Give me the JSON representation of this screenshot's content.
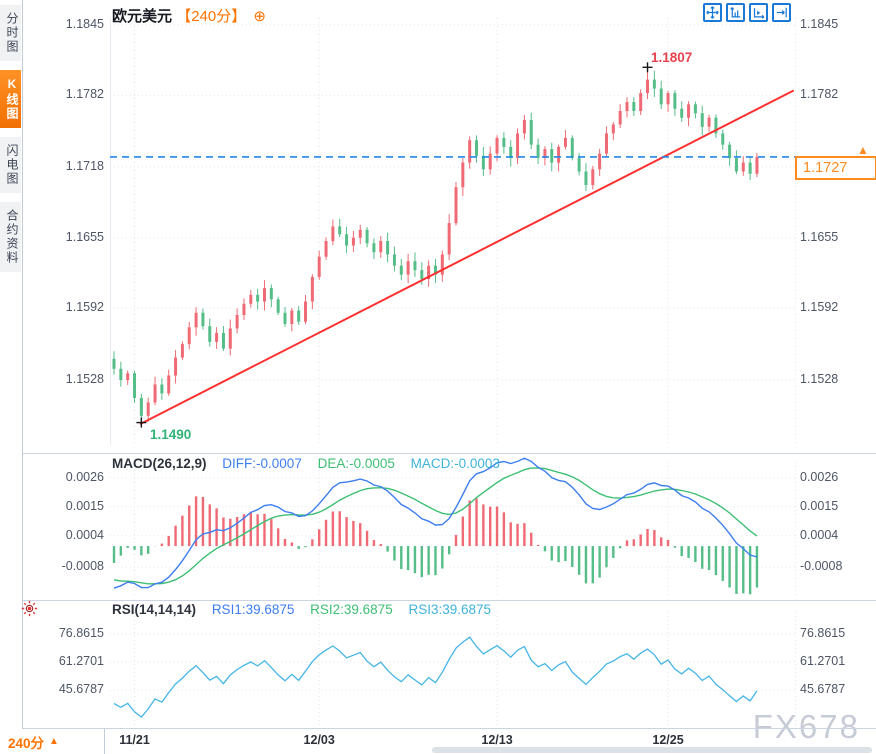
{
  "header": {
    "symbol": "欧元美元",
    "period": "【240分】",
    "add_icon": "⊕"
  },
  "toolbar": {
    "icons": [
      "crosshair-move",
      "fit-vertical-scale",
      "fit-horizontal-scale",
      "jump-to-latest"
    ]
  },
  "sidebar": {
    "items": [
      {
        "label": "分时图",
        "active": false
      },
      {
        "label": "K线图",
        "active": true
      },
      {
        "label": "闪电图",
        "active": false
      },
      {
        "label": "合约资料",
        "active": false
      }
    ]
  },
  "price_panel": {
    "y_tick_labels": [
      "1.1845",
      "1.1782",
      "1.1718",
      "1.1655",
      "1.1592",
      "1.1528"
    ],
    "high_label": "1.1807",
    "low_label": "1.1490",
    "current_price": "1.1727",
    "direction_arrow": "▲"
  },
  "macd_panel": {
    "title": "MACD(26,12,9)",
    "diff": "DIFF:-0.0007",
    "dea": "DEA:-0.0005",
    "macd": "MACD:-0.0003",
    "y_tick_labels": [
      "0.0026",
      "0.0015",
      "0.0004",
      "-0.0008"
    ]
  },
  "rsi_panel": {
    "title": "RSI(14,14,14)",
    "rsi1": "RSI1:39.6875",
    "rsi2": "RSI2:39.6875",
    "rsi3": "RSI3:39.6875",
    "y_tick_labels": [
      "76.8615",
      "61.2701",
      "45.6787"
    ]
  },
  "footer": {
    "period_label": "240分",
    "arrow": "▲",
    "dates": [
      "11/21",
      "12/03",
      "12/13",
      "12/25"
    ]
  },
  "watermark": "FX678",
  "colors": {
    "up": "#ef6a74",
    "down": "#54bd88",
    "trend": "#ff3030",
    "current_line": "#2287e8",
    "accent_orange": "#ff7300",
    "price_box": "#ff8a1e",
    "diff_line": "#3d7ef0",
    "dea_line": "#3fbf74",
    "rsi_line": "#45b5e6",
    "hist_up": "#ef6a74",
    "hist_down": "#54bd88",
    "grid": "#e2e6ee",
    "separator": "#ccd4e2",
    "cross_marker": "#16181c"
  },
  "chart_data": [
    {
      "type": "candlestick",
      "title": "欧元美元 240分",
      "interval": "240分",
      "first_open": 1.1547,
      "closes": [
        1.1538,
        1.1528,
        1.1534,
        1.1512,
        1.1496,
        1.1508,
        1.1524,
        1.1516,
        1.1532,
        1.1548,
        1.156,
        1.1575,
        1.1588,
        1.1576,
        1.1562,
        1.157,
        1.1556,
        1.1574,
        1.1586,
        1.1596,
        1.1604,
        1.1598,
        1.161,
        1.16,
        1.1588,
        1.1578,
        1.159,
        1.158,
        1.1598,
        1.162,
        1.1638,
        1.1652,
        1.1665,
        1.1658,
        1.1648,
        1.1655,
        1.1662,
        1.165,
        1.1642,
        1.1652,
        1.164,
        1.163,
        1.1622,
        1.1634,
        1.1626,
        1.1618,
        1.163,
        1.1622,
        1.164,
        1.1668,
        1.17,
        1.1722,
        1.1742,
        1.1728,
        1.1716,
        1.173,
        1.1744,
        1.1736,
        1.1726,
        1.1748,
        1.176,
        1.1738,
        1.1726,
        1.1734,
        1.1722,
        1.1736,
        1.1744,
        1.1726,
        1.1714,
        1.1702,
        1.1716,
        1.173,
        1.1748,
        1.1756,
        1.1768,
        1.1776,
        1.1768,
        1.1784,
        1.1796,
        1.1788,
        1.1774,
        1.1784,
        1.177,
        1.1762,
        1.1774,
        1.1766,
        1.1754,
        1.1762,
        1.1748,
        1.1738,
        1.1726,
        1.1714,
        1.1722,
        1.1712,
        1.1727
      ],
      "y_ticks": [
        1.1845,
        1.1782,
        1.1718,
        1.1655,
        1.1592,
        1.1528
      ],
      "x_ticks": [
        {
          "label": "11/21",
          "index": 3
        },
        {
          "label": "12/03",
          "index": 30
        },
        {
          "label": "12/13",
          "index": 56
        },
        {
          "label": "12/25",
          "index": 81
        }
      ],
      "high_annotation": {
        "index": 78,
        "price": 1.1807
      },
      "low_annotation": {
        "index": 4,
        "price": 1.149
      },
      "current_price": 1.1727,
      "trend_line": {
        "x1_frac": 0.045,
        "price1": 1.1489,
        "x2_frac": 0.997,
        "price2": 1.1786
      },
      "ylim": [
        1.147,
        1.1851
      ]
    },
    {
      "type": "macd",
      "params": [
        26,
        12,
        9
      ],
      "derived_from": "closes",
      "last": {
        "diff": -0.0007,
        "dea": -0.0005,
        "macd": -0.0003
      },
      "y_ticks": [
        0.0026,
        0.0015,
        0.0004,
        -0.0008
      ],
      "ylim": [
        -0.0019,
        0.0032
      ]
    },
    {
      "type": "rsi",
      "params": [
        14,
        14,
        14
      ],
      "derived_from": "closes",
      "last": {
        "rsi1": 39.6875,
        "rsi2": 39.6875,
        "rsi3": 39.6875
      },
      "y_ticks": [
        76.8615,
        61.2701,
        45.6787
      ],
      "ylim": [
        26,
        89
      ]
    }
  ]
}
